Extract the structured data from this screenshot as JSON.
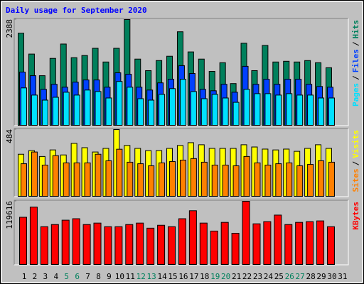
{
  "title": "Daily usage for September 2020",
  "chart_data": [
    {
      "type": "bar",
      "ylim": [
        0,
        2388
      ],
      "yticks": [
        2388
      ],
      "separator": "/",
      "series": [
        {
          "name": "Hits",
          "color": "#00805c",
          "values": [
            2081,
            1614,
            1129,
            1517,
            1839,
            1533,
            1581,
            1743,
            1436,
            1743,
            2388,
            1501,
            1242,
            1468,
            1565,
            2114,
            1662,
            1501,
            1226,
            1420,
            952,
            1856,
            1242,
            1807,
            1436,
            1452,
            1436,
            1468,
            1420,
            1307,
            null
          ]
        },
        {
          "name": "Files",
          "color": "#0040ff",
          "values": [
            1210,
            1129,
            823,
            936,
            871,
            984,
            1033,
            1033,
            871,
            1194,
            1162,
            871,
            807,
            968,
            1049,
            1355,
            1178,
            823,
            791,
            936,
            758,
            1339,
            936,
            1049,
            936,
            1049,
            1049,
            936,
            887,
            871,
            null
          ]
        },
        {
          "name": "Pages",
          "color": "#00e0ff",
          "values": [
            855,
            694,
            581,
            645,
            758,
            694,
            807,
            774,
            629,
            1000,
            871,
            613,
            581,
            710,
            839,
            1049,
            774,
            613,
            710,
            629,
            532,
            823,
            726,
            726,
            694,
            726,
            694,
            694,
            629,
            629,
            null
          ]
        }
      ]
    },
    {
      "type": "bar",
      "ylim": [
        0,
        484
      ],
      "yticks": [
        484
      ],
      "separator": "/",
      "series": [
        {
          "name": "Visits",
          "color": "#ffff00",
          "values": [
            307,
            333,
            291,
            338,
            302,
            385,
            354,
            323,
            349,
            484,
            370,
            349,
            333,
            333,
            349,
            370,
            390,
            375,
            349,
            349,
            349,
            375,
            359,
            344,
            338,
            344,
            328,
            349,
            375,
            349,
            null
          ]
        },
        {
          "name": "Sites",
          "color": "#ff8000",
          "values": [
            239,
            323,
            229,
            297,
            245,
            245,
            245,
            307,
            260,
            343,
            250,
            239,
            224,
            245,
            255,
            265,
            276,
            250,
            229,
            229,
            224,
            291,
            245,
            229,
            239,
            245,
            224,
            234,
            260,
            250,
            null
          ]
        }
      ]
    },
    {
      "type": "bar",
      "ylim": [
        0,
        119616
      ],
      "yticks": [
        119616
      ],
      "categories": [
        "1",
        "2",
        "3",
        "4",
        "5",
        "6",
        "7",
        "8",
        "9",
        "10",
        "11",
        "12",
        "13",
        "14",
        "15",
        "16",
        "17",
        "18",
        "19",
        "20",
        "21",
        "22",
        "23",
        "24",
        "25",
        "26",
        "27",
        "28",
        "29",
        "30",
        "31"
      ],
      "category_colors": [
        "#000000",
        "#000000",
        "#000000",
        "#000000",
        "#00805c",
        "#00805c",
        "#000000",
        "#000000",
        "#000000",
        "#000000",
        "#000000",
        "#00805c",
        "#00805c",
        "#000000",
        "#000000",
        "#000000",
        "#000000",
        "#000000",
        "#00805c",
        "#00805c",
        "#000000",
        "#000000",
        "#000000",
        "#000000",
        "#000000",
        "#00805c",
        "#00805c",
        "#000000",
        "#000000",
        "#000000",
        "#000000"
      ],
      "series": [
        {
          "name": "KBytes",
          "color": "#ff0000",
          "values": [
            89713,
            108742,
            72042,
            76119,
            84275,
            86993,
            76119,
            78838,
            72042,
            72042,
            76119,
            78838,
            69323,
            74760,
            72042,
            86993,
            101945,
            78838,
            63886,
            80197,
            59808,
            119616,
            77478,
            81556,
            93790,
            76119,
            80197,
            81556,
            82915,
            72042,
            null
          ]
        }
      ]
    }
  ]
}
